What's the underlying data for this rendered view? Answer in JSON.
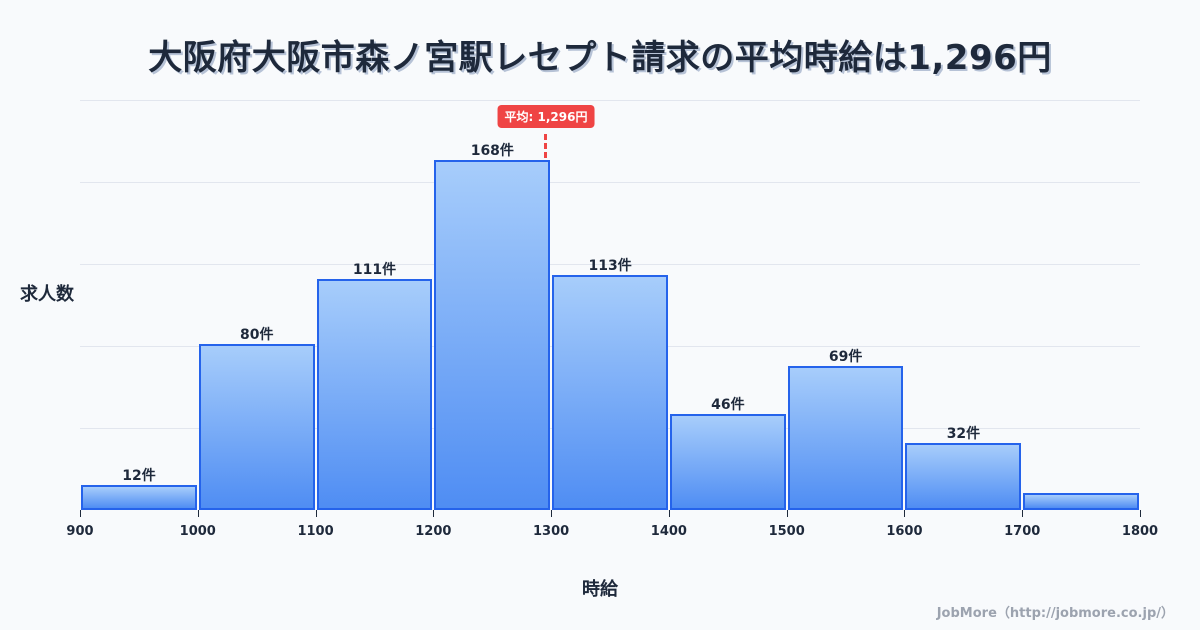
{
  "title": "大阪府大阪市森ノ宮駅レセプト請求の平均時給は1,296円",
  "ylabel": "求人数",
  "xlabel": "時給",
  "mean_label": "平均: 1,296円",
  "credit": "JobMore（http://jobmore.co.jp/）",
  "colors": {
    "bar_border": "#2563eb",
    "bar_top": "#a7cdfb",
    "bar_bottom": "#4f8df3",
    "mean_line": "#ef4444",
    "text": "#1e293b"
  },
  "bars": [
    {
      "label": "12件"
    },
    {
      "label": "80件"
    },
    {
      "label": "111件"
    },
    {
      "label": "168件"
    },
    {
      "label": "113件"
    },
    {
      "label": "46件"
    },
    {
      "label": "69件"
    },
    {
      "label": "32件"
    },
    {
      "label": ""
    }
  ],
  "ticks": [
    "900",
    "1000",
    "1100",
    "1200",
    "1300",
    "1400",
    "1500",
    "1600",
    "1700",
    "1800"
  ],
  "chart_data": {
    "type": "bar",
    "title": "大阪府大阪市森ノ宮駅レセプト請求の平均時給は1,296円",
    "xlabel": "時給",
    "ylabel": "求人数",
    "categories": [
      "900-1000",
      "1000-1100",
      "1100-1200",
      "1200-1300",
      "1300-1400",
      "1400-1500",
      "1500-1600",
      "1600-1700",
      "1700-1800"
    ],
    "values": [
      12,
      80,
      111,
      168,
      113,
      46,
      69,
      32,
      8
    ],
    "value_labels": [
      "12件",
      "80件",
      "111件",
      "168件",
      "113件",
      "46件",
      "69件",
      "32件",
      ""
    ],
    "x_ticks": [
      900,
      1000,
      1100,
      1200,
      1300,
      1400,
      1500,
      1600,
      1700,
      1800
    ],
    "xlim": [
      900,
      1800
    ],
    "ylim": [
      0,
      197
    ],
    "grid": true,
    "annotations": [
      {
        "type": "vline",
        "x": 1296,
        "label": "平均: 1,296円",
        "style": "dashed",
        "color": "#ef4444"
      }
    ]
  }
}
